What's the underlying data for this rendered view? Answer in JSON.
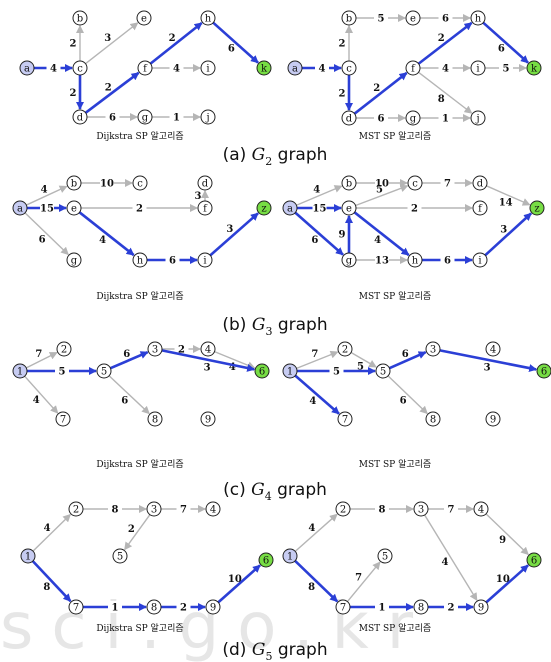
{
  "watermark": "sci.go.kr",
  "colors": {
    "highlight": "#2b3fd6",
    "edge": "#b5b5b5",
    "start_fill": "#c7ccf2",
    "end_fill": "#77dd44",
    "node_fill": "#ffffff",
    "text": "#111111"
  },
  "sections": [
    {
      "id": "g2",
      "caption_prefix": "(a) ",
      "caption_var": "G",
      "caption_sub": "2",
      "caption_suffix": " graph"
    },
    {
      "id": "g3",
      "caption_prefix": "(b) ",
      "caption_var": "G",
      "caption_sub": "3",
      "caption_suffix": " graph"
    },
    {
      "id": "g4",
      "caption_prefix": "(c) ",
      "caption_var": "G",
      "caption_sub": "4",
      "caption_suffix": " graph"
    },
    {
      "id": "g5",
      "caption_prefix": "(d) ",
      "caption_var": "G",
      "caption_sub": "5",
      "caption_suffix": " graph"
    }
  ],
  "graphs": [
    {
      "section": "g2",
      "side": "left",
      "label": "Dijkstra SP 알고리즘",
      "nodes": [
        [
          "a",
          "start"
        ],
        [
          "b",
          ""
        ],
        [
          "c",
          ""
        ],
        [
          "d",
          ""
        ],
        [
          "e",
          ""
        ],
        [
          "f",
          ""
        ],
        [
          "g",
          ""
        ],
        [
          "h",
          ""
        ],
        [
          "i",
          ""
        ],
        [
          "j",
          ""
        ],
        [
          "k",
          "end"
        ]
      ],
      "edges": [
        [
          "a",
          "c",
          "4",
          1
        ],
        [
          "c",
          "b",
          "2",
          0
        ],
        [
          "c",
          "e",
          "3",
          0
        ],
        [
          "c",
          "d",
          "2",
          1
        ],
        [
          "d",
          "f",
          "2",
          1
        ],
        [
          "d",
          "g",
          "6",
          0
        ],
        [
          "f",
          "h",
          "2",
          1
        ],
        [
          "f",
          "i",
          "4",
          0
        ],
        [
          "g",
          "j",
          "1",
          0
        ],
        [
          "h",
          "k",
          "6",
          1
        ]
      ]
    },
    {
      "section": "g2",
      "side": "right",
      "label": "MST SP 알고리즘",
      "nodes": [
        [
          "a",
          "start"
        ],
        [
          "b",
          ""
        ],
        [
          "c",
          ""
        ],
        [
          "d",
          ""
        ],
        [
          "e",
          ""
        ],
        [
          "f",
          ""
        ],
        [
          "g",
          ""
        ],
        [
          "h",
          ""
        ],
        [
          "i",
          ""
        ],
        [
          "j",
          ""
        ],
        [
          "k",
          "end"
        ]
      ],
      "edges": [
        [
          "a",
          "c",
          "4",
          1
        ],
        [
          "c",
          "b",
          "2",
          0
        ],
        [
          "b",
          "e",
          "5",
          0
        ],
        [
          "e",
          "h",
          "6",
          0
        ],
        [
          "c",
          "d",
          "2",
          1
        ],
        [
          "d",
          "f",
          "2",
          1
        ],
        [
          "d",
          "g",
          "6",
          0
        ],
        [
          "f",
          "h",
          "2",
          1
        ],
        [
          "f",
          "i",
          "4",
          0
        ],
        [
          "i",
          "k",
          "5",
          0
        ],
        [
          "f",
          "j",
          "8",
          0
        ],
        [
          "g",
          "j",
          "1",
          0
        ],
        [
          "h",
          "k",
          "6",
          1
        ]
      ]
    },
    {
      "section": "g3",
      "side": "left",
      "label": "Dijkstra SP 알고리즘",
      "nodes": [
        [
          "a",
          "start"
        ],
        [
          "b",
          ""
        ],
        [
          "c",
          ""
        ],
        [
          "d",
          ""
        ],
        [
          "e",
          ""
        ],
        [
          "f",
          ""
        ],
        [
          "g",
          ""
        ],
        [
          "h",
          ""
        ],
        [
          "i",
          ""
        ],
        [
          "z",
          "end"
        ]
      ],
      "edges": [
        [
          "a",
          "b",
          "4",
          0
        ],
        [
          "b",
          "c",
          "10",
          0
        ],
        [
          "a",
          "e",
          "15",
          1
        ],
        [
          "e",
          "f",
          "2",
          0
        ],
        [
          "f",
          "d",
          "3",
          0
        ],
        [
          "a",
          "g",
          "6",
          0
        ],
        [
          "e",
          "h",
          "4",
          1
        ],
        [
          "h",
          "i",
          "6",
          1
        ],
        [
          "i",
          "z",
          "3",
          1
        ]
      ]
    },
    {
      "section": "g3",
      "side": "right",
      "label": "MST SP 알고리즘",
      "nodes": [
        [
          "a",
          "start"
        ],
        [
          "b",
          ""
        ],
        [
          "c",
          ""
        ],
        [
          "d",
          ""
        ],
        [
          "e",
          ""
        ],
        [
          "f",
          ""
        ],
        [
          "g",
          ""
        ],
        [
          "h",
          ""
        ],
        [
          "i",
          ""
        ],
        [
          "z",
          "end"
        ]
      ],
      "edges": [
        [
          "a",
          "b",
          "4",
          0
        ],
        [
          "b",
          "c",
          "10",
          0
        ],
        [
          "c",
          "d",
          "7",
          0
        ],
        [
          "d",
          "z",
          "14",
          0
        ],
        [
          "e",
          "c",
          "5",
          0
        ],
        [
          "a",
          "e",
          "15",
          1
        ],
        [
          "e",
          "f",
          "2",
          0
        ],
        [
          "a",
          "g",
          "6",
          1
        ],
        [
          "g",
          "e",
          "9",
          1
        ],
        [
          "g",
          "h",
          "13",
          0
        ],
        [
          "e",
          "h",
          "4",
          1
        ],
        [
          "h",
          "i",
          "6",
          1
        ],
        [
          "i",
          "z",
          "3",
          1
        ]
      ]
    },
    {
      "section": "g4",
      "side": "left",
      "label": "Dijkstra SP 알고리즘",
      "nodes": [
        [
          "1",
          "start"
        ],
        [
          "2",
          ""
        ],
        [
          "3",
          ""
        ],
        [
          "4",
          ""
        ],
        [
          "5",
          ""
        ],
        [
          "6",
          "end"
        ],
        [
          "7",
          ""
        ],
        [
          "8",
          ""
        ],
        [
          "9",
          ""
        ]
      ],
      "edges": [
        [
          "1",
          "2",
          "7",
          0
        ],
        [
          "1",
          "5",
          "5",
          1
        ],
        [
          "1",
          "7",
          "4",
          0
        ],
        [
          "5",
          "3",
          "6",
          1
        ],
        [
          "3",
          "4",
          "2",
          0
        ],
        [
          "4",
          "6",
          "4",
          0
        ],
        [
          "3",
          "6",
          "3",
          1
        ],
        [
          "5",
          "8",
          "6",
          0
        ]
      ]
    },
    {
      "section": "g4",
      "side": "right",
      "label": "MST SP 알고리즘",
      "nodes": [
        [
          "1",
          "start"
        ],
        [
          "2",
          ""
        ],
        [
          "3",
          ""
        ],
        [
          "4",
          ""
        ],
        [
          "5",
          ""
        ],
        [
          "6",
          "end"
        ],
        [
          "7",
          ""
        ],
        [
          "8",
          ""
        ],
        [
          "9",
          ""
        ]
      ],
      "edges": [
        [
          "1",
          "2",
          "7",
          0
        ],
        [
          "2",
          "5",
          "5",
          0
        ],
        [
          "1",
          "5",
          "5",
          1
        ],
        [
          "1",
          "7",
          "4",
          1
        ],
        [
          "5",
          "3",
          "6",
          1
        ],
        [
          "3",
          "6",
          "3",
          1
        ],
        [
          "5",
          "8",
          "6",
          0
        ]
      ]
    },
    {
      "section": "g5",
      "side": "left",
      "label": "Dijkstra SP 알고리즘",
      "nodes": [
        [
          "1",
          "start"
        ],
        [
          "2",
          ""
        ],
        [
          "3",
          ""
        ],
        [
          "4",
          ""
        ],
        [
          "5",
          ""
        ],
        [
          "6",
          "end"
        ],
        [
          "7",
          ""
        ],
        [
          "8",
          ""
        ],
        [
          "9",
          ""
        ]
      ],
      "edges": [
        [
          "1",
          "2",
          "4",
          0
        ],
        [
          "2",
          "3",
          "8",
          0
        ],
        [
          "3",
          "4",
          "7",
          0
        ],
        [
          "3",
          "5",
          "2",
          0
        ],
        [
          "1",
          "7",
          "8",
          1
        ],
        [
          "7",
          "8",
          "1",
          1
        ],
        [
          "8",
          "9",
          "2",
          1
        ],
        [
          "9",
          "6",
          "10",
          1
        ]
      ]
    },
    {
      "section": "g5",
      "side": "right",
      "label": "MST SP 알고리즘",
      "nodes": [
        [
          "1",
          "start"
        ],
        [
          "2",
          ""
        ],
        [
          "3",
          ""
        ],
        [
          "4",
          ""
        ],
        [
          "5",
          ""
        ],
        [
          "6",
          "end"
        ],
        [
          "7",
          ""
        ],
        [
          "8",
          ""
        ],
        [
          "9",
          ""
        ]
      ],
      "edges": [
        [
          "1",
          "2",
          "4",
          0
        ],
        [
          "2",
          "3",
          "8",
          0
        ],
        [
          "3",
          "4",
          "7",
          0
        ],
        [
          "4",
          "6",
          "9",
          0
        ],
        [
          "3",
          "9",
          "4",
          0
        ],
        [
          "7",
          "5",
          "7",
          0
        ],
        [
          "1",
          "7",
          "8",
          1
        ],
        [
          "7",
          "8",
          "1",
          1
        ],
        [
          "8",
          "9",
          "2",
          1
        ],
        [
          "9",
          "6",
          "10",
          1
        ]
      ]
    }
  ]
}
